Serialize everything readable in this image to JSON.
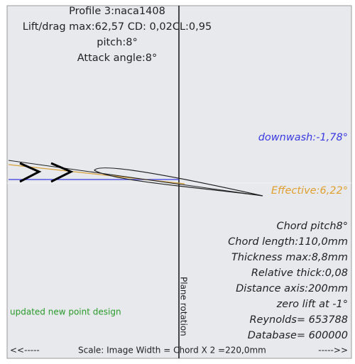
{
  "header": {
    "profile": "Profile 3:naca1408",
    "lift_drag": "Lift/drag max:62,57 CD: 0,02CL:0,95",
    "pitch": "pitch:8°",
    "attack_angle": "Attack angle:8°"
  },
  "angles": {
    "downwash": "downwash:-1,78°",
    "effective": "Effective:6,22°"
  },
  "details": [
    "Chord pitch8°",
    "Chord length:110,0mm",
    "Thickness max:8,8mm",
    "Relative thick:0,08",
    "Distance axis:200mm",
    "zero lift at -1°",
    "Reynolds= 653788",
    "Database= 600000"
  ],
  "status": "updated new point design",
  "axis_label": "Plane rotation",
  "scale": {
    "left": "<<-----",
    "text": "Scale: Image Width = Chord X 2 =220,0mm",
    "right": "----->>"
  }
}
